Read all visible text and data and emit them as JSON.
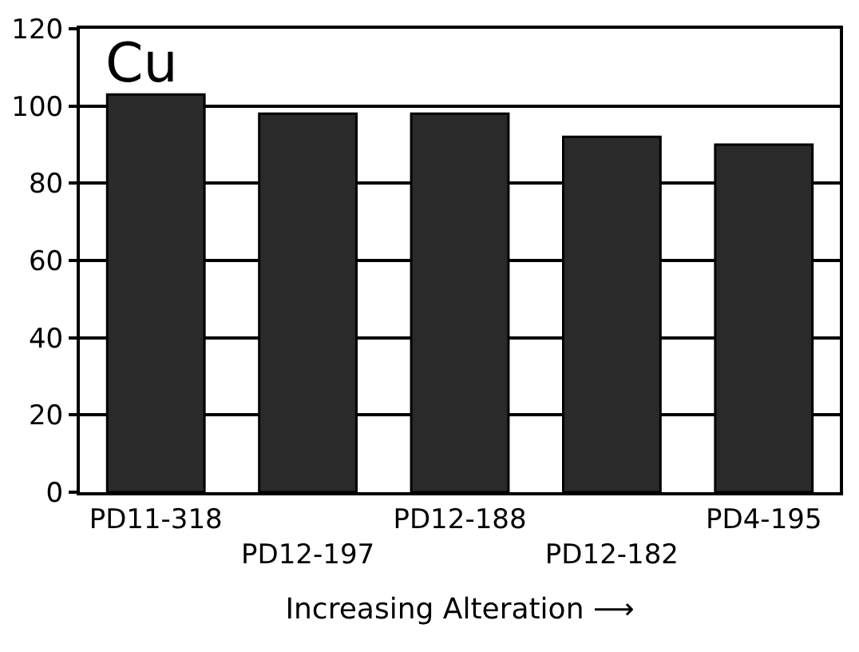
{
  "chart_data": {
    "type": "bar",
    "title": "Cu",
    "xlabel": "Increasing Alteration ⟶",
    "categories": [
      "PD11-318",
      "PD12-197",
      "PD12-188",
      "PD12-182",
      "PD4-195"
    ],
    "values": [
      103,
      98,
      98,
      92,
      90
    ],
    "color": "#2a2a2a",
    "ylim": [
      0,
      120
    ],
    "yticks": [
      0,
      20,
      40,
      60,
      80,
      100,
      120
    ],
    "grid": "y",
    "legend": false
  }
}
